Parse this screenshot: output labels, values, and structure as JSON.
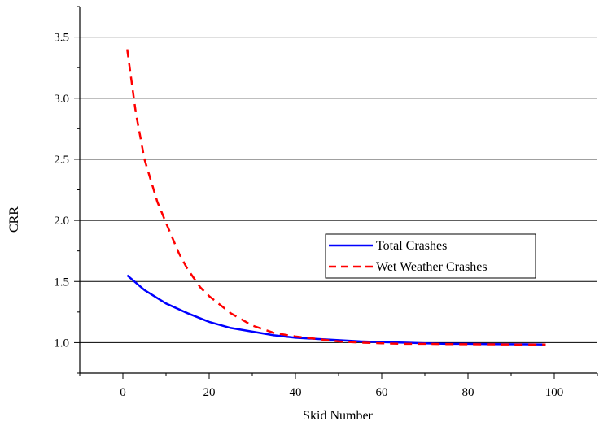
{
  "chart_data": {
    "type": "line",
    "title": "",
    "xlabel": "Skid Number",
    "ylabel": "CRR",
    "xlim": [
      -10,
      110
    ],
    "ylim": [
      0.75,
      3.75
    ],
    "xticks": [
      0,
      20,
      40,
      60,
      80,
      100
    ],
    "yticks": [
      1.0,
      1.5,
      2.0,
      2.5,
      3.0,
      3.5
    ],
    "xtick_labels": [
      "0",
      "20",
      "40",
      "60",
      "80",
      "100"
    ],
    "ytick_labels": [
      "1.0",
      "1.5",
      "2.0",
      "2.5",
      "3.0",
      "3.5"
    ],
    "grid": "horizontal",
    "legend_position": "center-right",
    "series": [
      {
        "name": "Total Crashes",
        "color": "#0000ff",
        "style": "solid",
        "x": [
          1,
          5,
          10,
          15,
          20,
          25,
          30,
          35,
          40,
          45,
          50,
          55,
          60,
          65,
          70,
          75,
          80,
          85,
          90,
          95,
          98
        ],
        "y": [
          1.55,
          1.43,
          1.32,
          1.24,
          1.17,
          1.12,
          1.09,
          1.06,
          1.04,
          1.03,
          1.02,
          1.01,
          1.005,
          1.0,
          0.995,
          0.99,
          0.99,
          0.988,
          0.987,
          0.986,
          0.985
        ]
      },
      {
        "name": "Wet Weather Crashes",
        "color": "#ff0000",
        "style": "dashed",
        "x": [
          1,
          3,
          5,
          8,
          10,
          13,
          15,
          18,
          20,
          25,
          30,
          35,
          40,
          45,
          50,
          55,
          60,
          65,
          70,
          75,
          80,
          85,
          90,
          95,
          98
        ],
        "y": [
          3.4,
          2.88,
          2.5,
          2.15,
          1.98,
          1.73,
          1.6,
          1.45,
          1.38,
          1.24,
          1.14,
          1.08,
          1.05,
          1.03,
          1.01,
          1.0,
          0.995,
          0.99,
          0.99,
          0.988,
          0.987,
          0.986,
          0.985,
          0.985,
          0.985
        ]
      }
    ]
  }
}
